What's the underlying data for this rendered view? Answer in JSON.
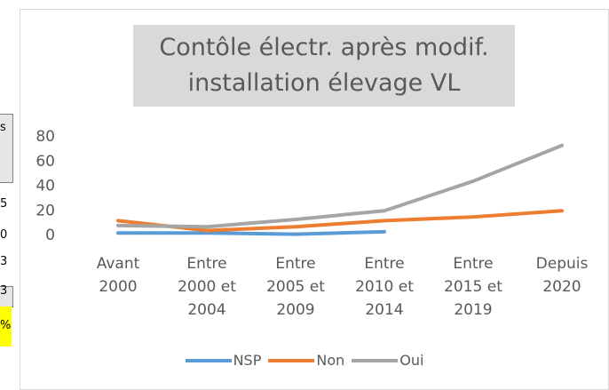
{
  "background_cells": [
    "s",
    "5",
    "0",
    "3",
    "3",
    "%"
  ],
  "chart_data": {
    "type": "line",
    "title": "Contôle électr. après modif. installation élevage VL",
    "categories": [
      "Avant 2000",
      "Entre 2000 et 2004",
      "Entre 2005 et 2009",
      "Entre 2010 et 2014",
      "Entre 2015 et 2019",
      "Depuis 2020"
    ],
    "series": [
      {
        "name": "NSP",
        "color": "#5b9bd5",
        "values": [
          2,
          2,
          1,
          3,
          null,
          null
        ]
      },
      {
        "name": "Non",
        "color": "#ed7d31",
        "values": [
          12,
          4,
          7,
          12,
          15,
          20
        ]
      },
      {
        "name": "Oui",
        "color": "#a5a5a5",
        "values": [
          8,
          7,
          13,
          20,
          44,
          73
        ]
      }
    ],
    "ylim": [
      0,
      80
    ],
    "yticks": [
      0,
      20,
      40,
      60,
      80
    ],
    "grid": false,
    "legend": "bottom"
  }
}
